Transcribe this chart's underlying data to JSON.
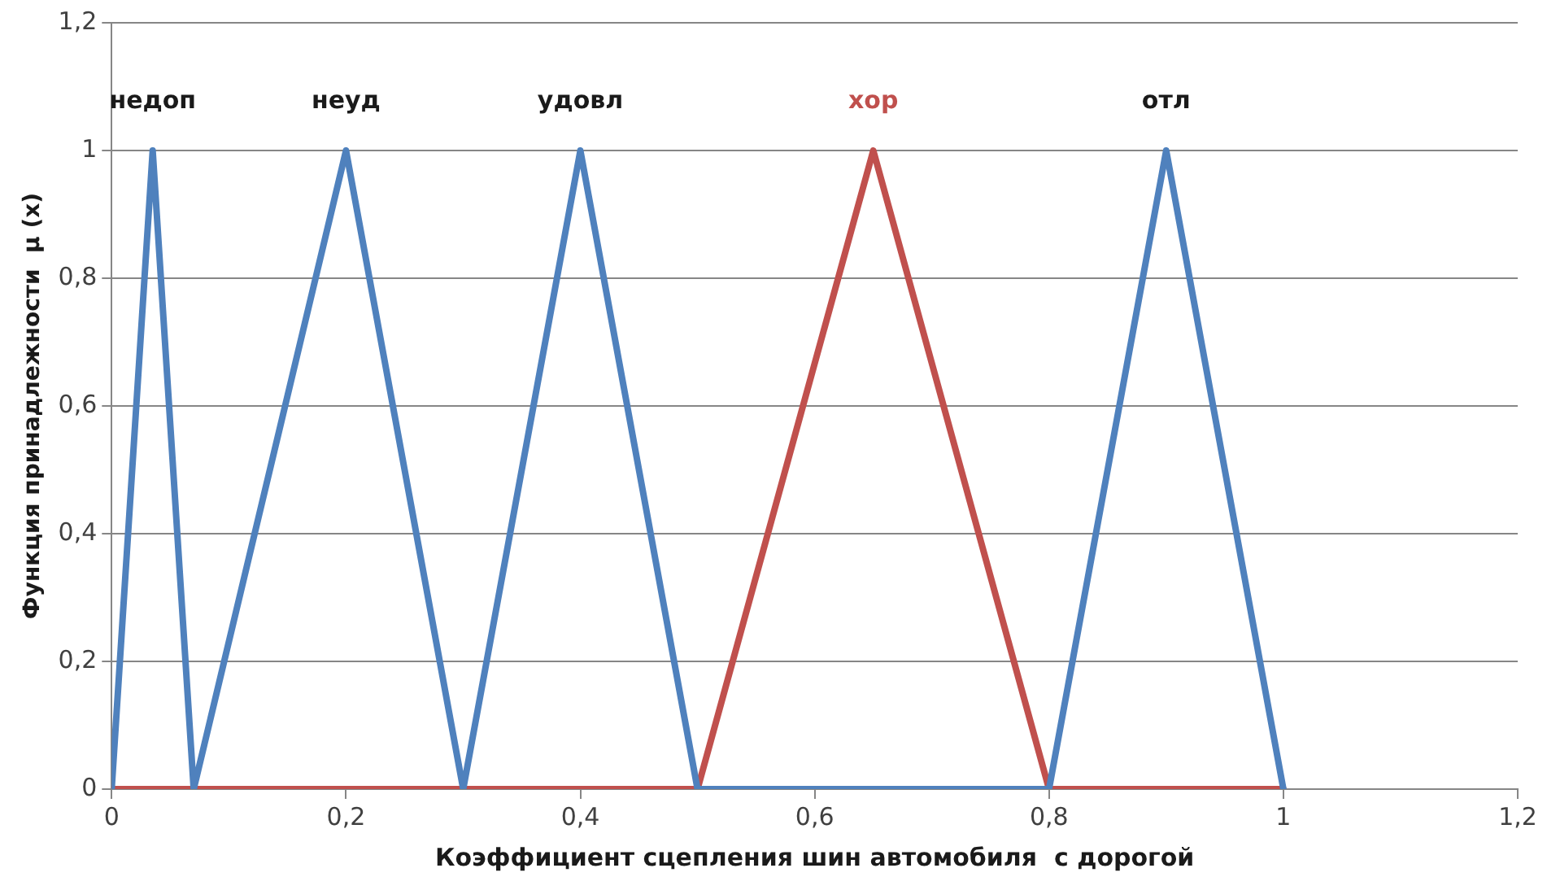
{
  "chart_data": {
    "type": "line",
    "xlabel": "Коэффициент сцепления шин автомобиля  с дорогой",
    "ylabel": "Функция принадлежности  μ (x)",
    "series": [
      {
        "color": "#4f81bd",
        "x": [
          0,
          0.035,
          0.07,
          0.2,
          0.3,
          0.4,
          0.5,
          0.8,
          0.9,
          1
        ],
        "values": [
          0,
          1,
          0,
          1,
          0,
          1,
          0,
          0,
          1,
          0
        ]
      },
      {
        "name": "хор",
        "color": "#c0504d",
        "x": [
          0,
          0.5,
          0.65,
          0.8,
          1
        ],
        "values": [
          0,
          0,
          1,
          0,
          0
        ]
      }
    ],
    "annotations": [
      "недоп",
      "неуд",
      "удовл",
      "отл"
    ],
    "xlim": [
      0,
      1.2
    ],
    "xticks": [
      0,
      {
        "value": 0.2,
        "label": "0,2"
      },
      {
        "value": 0.4,
        "label": "0,4"
      },
      {
        "value": 0.6,
        "label": "0,6"
      },
      {
        "value": 0.8,
        "label": "0,8"
      },
      1,
      {
        "value": 1.2,
        "label": "1,2"
      }
    ],
    "ylim": [
      0,
      1.2
    ],
    "yticks": [
      0,
      {
        "value": 0.2,
        "label": "0,2"
      },
      {
        "value": 0.4,
        "label": "0,4"
      },
      {
        "value": 0.6,
        "label": "0,6"
      },
      {
        "value": 0.8,
        "label": "0,8"
      },
      1,
      {
        "value": 1.2,
        "label": "1,2"
      }
    ],
    "grid": "y",
    "legend": false,
    "marker": "none",
    "line_style": "solid"
  }
}
